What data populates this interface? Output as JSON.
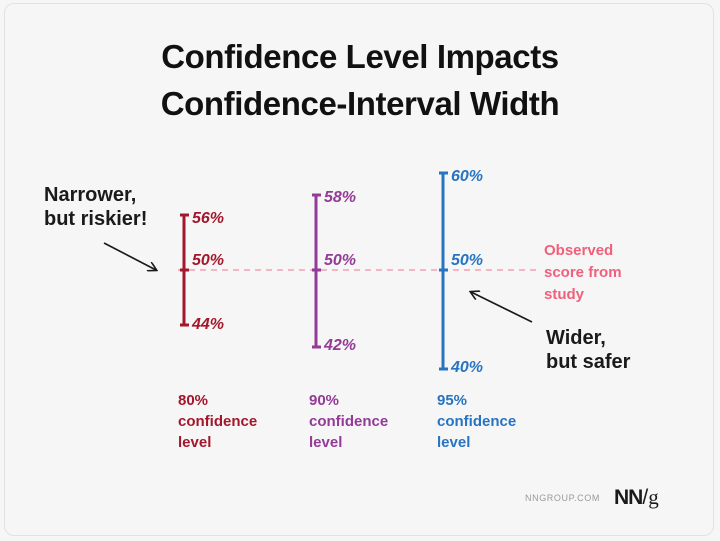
{
  "title_line1": "Confidence Level Impacts",
  "title_line2": "Confidence-Interval Width",
  "annotations": {
    "narrower_line1": "Narrower,",
    "narrower_line2": "but riskier!",
    "wider_line1": "Wider,",
    "wider_line2": "but safer",
    "observed_line1": "Observed",
    "observed_line2": "score from",
    "observed_line3": "study"
  },
  "colors": {
    "cl80": "#a3172c",
    "cl90": "#943a97",
    "cl95": "#2874c1",
    "observed": "#f0607a"
  },
  "intervals": [
    {
      "level_pct": "80%",
      "level_line2": "confidence",
      "level_line3": "level",
      "upper": "56%",
      "center": "50%",
      "lower": "44%"
    },
    {
      "level_pct": "90%",
      "level_line2": "confidence",
      "level_line3": "level",
      "upper": "58%",
      "center": "50%",
      "lower": "42%"
    },
    {
      "level_pct": "95%",
      "level_line2": "confidence",
      "level_line3": "level",
      "upper": "60%",
      "center": "50%",
      "lower": "40%"
    }
  ],
  "footer": {
    "site": "NNGROUP.COM",
    "logo_nn": "NN",
    "logo_slash": "/",
    "logo_g": "g"
  }
}
